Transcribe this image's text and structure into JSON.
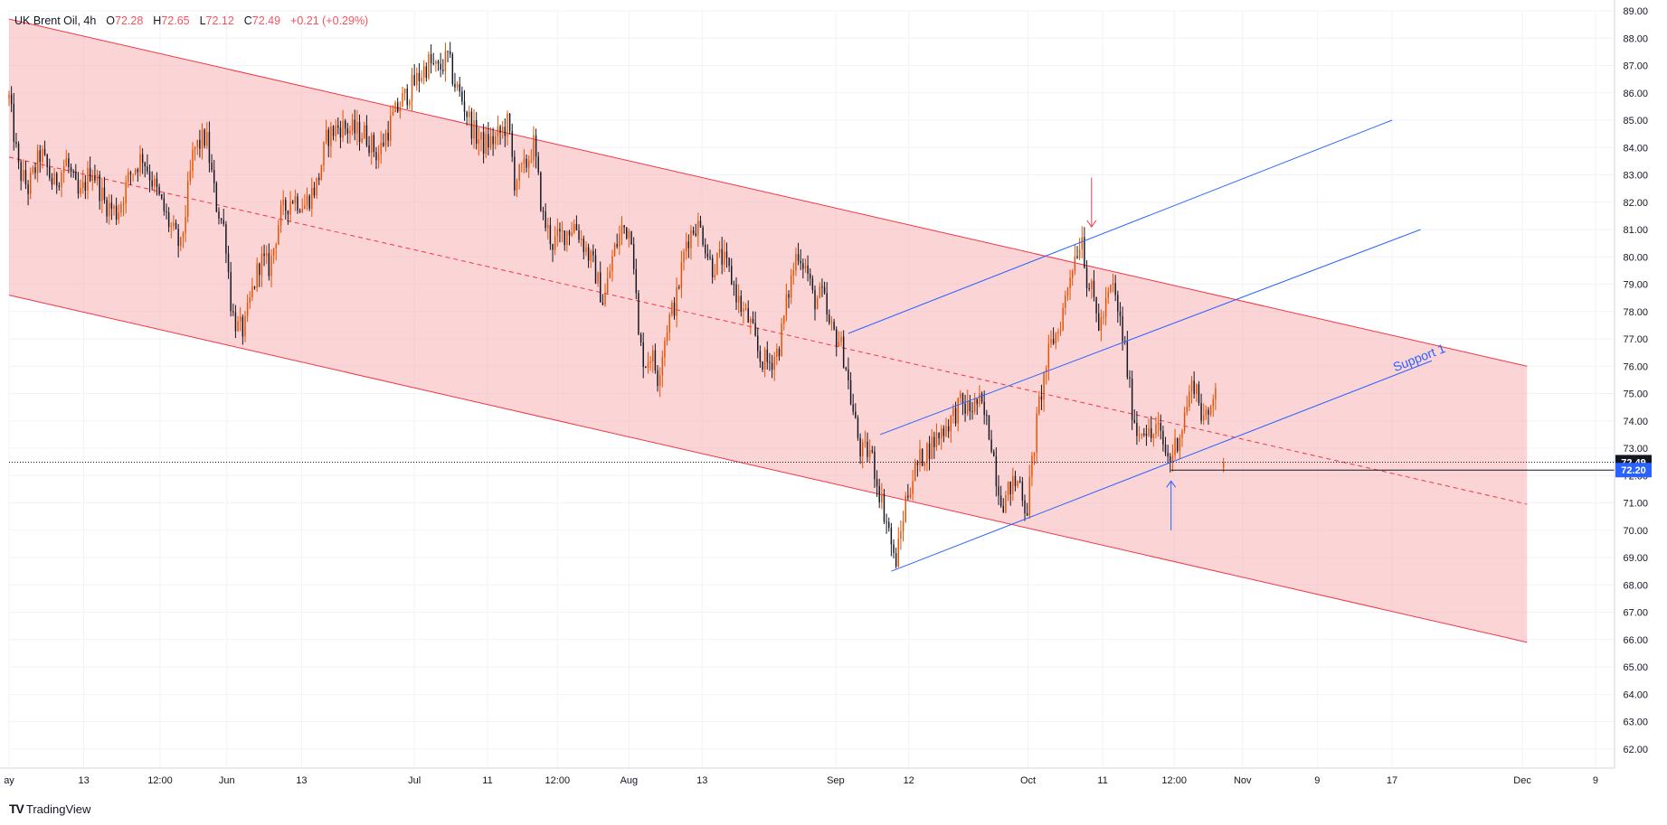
{
  "legend": {
    "symbol": "UK Brent Oil, 4h",
    "o_label": "O",
    "o_value": "72.28",
    "h_label": "H",
    "h_value": "72.65",
    "l_label": "L",
    "l_value": "72.12",
    "c_label": "C",
    "c_value": "72.49",
    "change": "+0.21 (+0.29%)"
  },
  "brand": {
    "logo": "TV",
    "name": "TradingView"
  },
  "chart_data": {
    "type": "candlestick",
    "y_range": [
      61.3,
      89.0
    ],
    "y_ticks": [
      62,
      63,
      64,
      65,
      66,
      67,
      68,
      69,
      70,
      71,
      72,
      73,
      74,
      75,
      76,
      77,
      78,
      79,
      80,
      81,
      82,
      83,
      84,
      85,
      86,
      87,
      88,
      89
    ],
    "x_ticks": [
      {
        "label": "ay",
        "idx": 0
      },
      {
        "label": "13",
        "idx": 47
      },
      {
        "label": "12:00",
        "idx": 95
      },
      {
        "label": "Jun",
        "idx": 137
      },
      {
        "label": "13",
        "idx": 184
      },
      {
        "label": "Jul",
        "idx": 255
      },
      {
        "label": "11",
        "idx": 301
      },
      {
        "label": "12:00",
        "idx": 345
      },
      {
        "label": "Aug",
        "idx": 390
      },
      {
        "label": "13",
        "idx": 436
      },
      {
        "label": "Sep",
        "idx": 520
      },
      {
        "label": "12",
        "idx": 566
      },
      {
        "label": "Oct",
        "idx": 641
      },
      {
        "label": "11",
        "idx": 688
      },
      {
        "label": "12:00",
        "idx": 733
      },
      {
        "label": "Nov",
        "idx": 776
      },
      {
        "label": "9",
        "idx": 823
      },
      {
        "label": "17",
        "idx": 870
      },
      {
        "label": "Dec",
        "idx": 952
      },
      {
        "label": "9",
        "idx": 998
      }
    ],
    "total_bars": 1010,
    "series_anchors": [
      [
        0,
        85.8
      ],
      [
        6,
        83.2
      ],
      [
        12,
        82.5
      ],
      [
        20,
        83.8
      ],
      [
        28,
        82.6
      ],
      [
        36,
        83.5
      ],
      [
        44,
        82.1
      ],
      [
        52,
        83.3
      ],
      [
        60,
        82.0
      ],
      [
        68,
        81.6
      ],
      [
        76,
        83.0
      ],
      [
        84,
        83.7
      ],
      [
        92,
        82.5
      ],
      [
        100,
        81.3
      ],
      [
        108,
        80.3
      ],
      [
        116,
        83.9
      ],
      [
        124,
        84.4
      ],
      [
        130,
        82.0
      ],
      [
        136,
        80.9
      ],
      [
        140,
        78.0
      ],
      [
        144,
        77.4
      ],
      [
        148,
        77.3
      ],
      [
        152,
        78.5
      ],
      [
        158,
        79.9
      ],
      [
        164,
        79.6
      ],
      [
        170,
        81.4
      ],
      [
        178,
        82.2
      ],
      [
        186,
        81.9
      ],
      [
        194,
        82.7
      ],
      [
        200,
        84.4
      ],
      [
        208,
        84.8
      ],
      [
        216,
        84.6
      ],
      [
        224,
        84.5
      ],
      [
        232,
        83.7
      ],
      [
        240,
        84.9
      ],
      [
        246,
        85.6
      ],
      [
        252,
        86.1
      ],
      [
        258,
        86.6
      ],
      [
        264,
        87.1
      ],
      [
        270,
        86.8
      ],
      [
        276,
        87.3
      ],
      [
        280,
        86.4
      ],
      [
        286,
        85.6
      ],
      [
        292,
        84.6
      ],
      [
        298,
        84.1
      ],
      [
        306,
        84.3
      ],
      [
        314,
        84.9
      ],
      [
        318,
        82.8
      ],
      [
        324,
        83.2
      ],
      [
        330,
        84.1
      ],
      [
        336,
        81.4
      ],
      [
        342,
        80.5
      ],
      [
        350,
        80.9
      ],
      [
        356,
        81.2
      ],
      [
        362,
        80.4
      ],
      [
        368,
        79.6
      ],
      [
        374,
        78.3
      ],
      [
        380,
        80.1
      ],
      [
        386,
        81.1
      ],
      [
        392,
        80.9
      ],
      [
        396,
        77.0
      ],
      [
        400,
        76.1
      ],
      [
        404,
        76.5
      ],
      [
        408,
        75.6
      ],
      [
        414,
        77.5
      ],
      [
        420,
        78.5
      ],
      [
        426,
        80.6
      ],
      [
        432,
        81.2
      ],
      [
        436,
        80.9
      ],
      [
        442,
        79.6
      ],
      [
        448,
        80.0
      ],
      [
        454,
        79.3
      ],
      [
        460,
        78.2
      ],
      [
        466,
        77.6
      ],
      [
        472,
        76.3
      ],
      [
        478,
        76.1
      ],
      [
        484,
        76.6
      ],
      [
        490,
        78.6
      ],
      [
        496,
        80.3
      ],
      [
        502,
        79.5
      ],
      [
        506,
        78.4
      ],
      [
        512,
        78.6
      ],
      [
        516,
        77.4
      ],
      [
        522,
        77.0
      ],
      [
        526,
        76.2
      ],
      [
        530,
        74.6
      ],
      [
        536,
        72.8
      ],
      [
        542,
        72.9
      ],
      [
        546,
        71.8
      ],
      [
        550,
        70.8
      ],
      [
        554,
        69.9
      ],
      [
        557,
        68.7
      ],
      [
        560,
        69.5
      ],
      [
        564,
        71.1
      ],
      [
        568,
        71.9
      ],
      [
        574,
        72.7
      ],
      [
        580,
        73.1
      ],
      [
        586,
        73.6
      ],
      [
        592,
        74.0
      ],
      [
        598,
        74.6
      ],
      [
        604,
        74.4
      ],
      [
        610,
        74.7
      ],
      [
        614,
        74.1
      ],
      [
        618,
        73.3
      ],
      [
        622,
        71.6
      ],
      [
        626,
        71.0
      ],
      [
        630,
        71.6
      ],
      [
        636,
        71.8
      ],
      [
        640,
        70.6
      ],
      [
        644,
        72.7
      ],
      [
        648,
        74.6
      ],
      [
        652,
        75.9
      ],
      [
        656,
        76.9
      ],
      [
        660,
        77.3
      ],
      [
        664,
        78.3
      ],
      [
        668,
        79.6
      ],
      [
        672,
        80.3
      ],
      [
        675,
        80.8
      ],
      [
        678,
        79.2
      ],
      [
        682,
        78.5
      ],
      [
        686,
        77.4
      ],
      [
        690,
        78.2
      ],
      [
        694,
        79.0
      ],
      [
        698,
        77.9
      ],
      [
        702,
        76.6
      ],
      [
        706,
        74.6
      ],
      [
        710,
        73.5
      ],
      [
        714,
        73.9
      ],
      [
        718,
        73.3
      ],
      [
        722,
        73.8
      ],
      [
        726,
        73.1
      ],
      [
        730,
        72.5
      ],
      [
        734,
        73.2
      ],
      [
        738,
        73.8
      ],
      [
        742,
        74.9
      ],
      [
        746,
        75.5
      ],
      [
        750,
        74.3
      ],
      [
        754,
        73.9
      ],
      [
        758,
        75.3
      ],
      [
        760,
        75.6
      ]
    ],
    "last_candle": {
      "idx": 764,
      "open": 72.28,
      "high": 72.65,
      "low": 72.12,
      "close": 72.49
    },
    "price_labels": [
      {
        "value": "72.49",
        "price": 72.49,
        "color": "#131722"
      },
      {
        "value": "72.20",
        "price": 72.2,
        "color": "#2962ff"
      }
    ],
    "channel": {
      "upper": [
        [
          0,
          88.7
        ],
        [
          955,
          76.0
        ]
      ],
      "lower": [
        [
          0,
          78.6
        ],
        [
          955,
          65.9
        ]
      ],
      "mid": [
        [
          0,
          83.65
        ],
        [
          955,
          70.95
        ]
      ],
      "fill": "#f7a9ae",
      "line_color": "#f23645"
    },
    "blue_channel": {
      "color": "#2962ff",
      "lines": [
        [
          [
            528,
            77.2
          ],
          [
            870,
            85.0
          ]
        ],
        [
          [
            548,
            73.5
          ],
          [
            888,
            81.0
          ]
        ],
        [
          [
            555,
            68.5
          ],
          [
            895,
            76.2
          ]
        ]
      ],
      "support_label": "Support 1",
      "support_label_at": [
        872,
        75.8
      ]
    },
    "support_level": {
      "price": 72.2,
      "start_idx": 731,
      "color": "#131722"
    },
    "annotations": [
      {
        "type": "down-arrow",
        "idx": 681,
        "from": 82.9,
        "to": 81.1,
        "color": "#f23645"
      },
      {
        "type": "up-arrow",
        "idx": 731,
        "from": 70.0,
        "to": 71.8,
        "color": "#2962ff"
      }
    ],
    "colors": {
      "up": "#e65100",
      "down": "#131722",
      "grid": "#f0f3fa"
    }
  }
}
